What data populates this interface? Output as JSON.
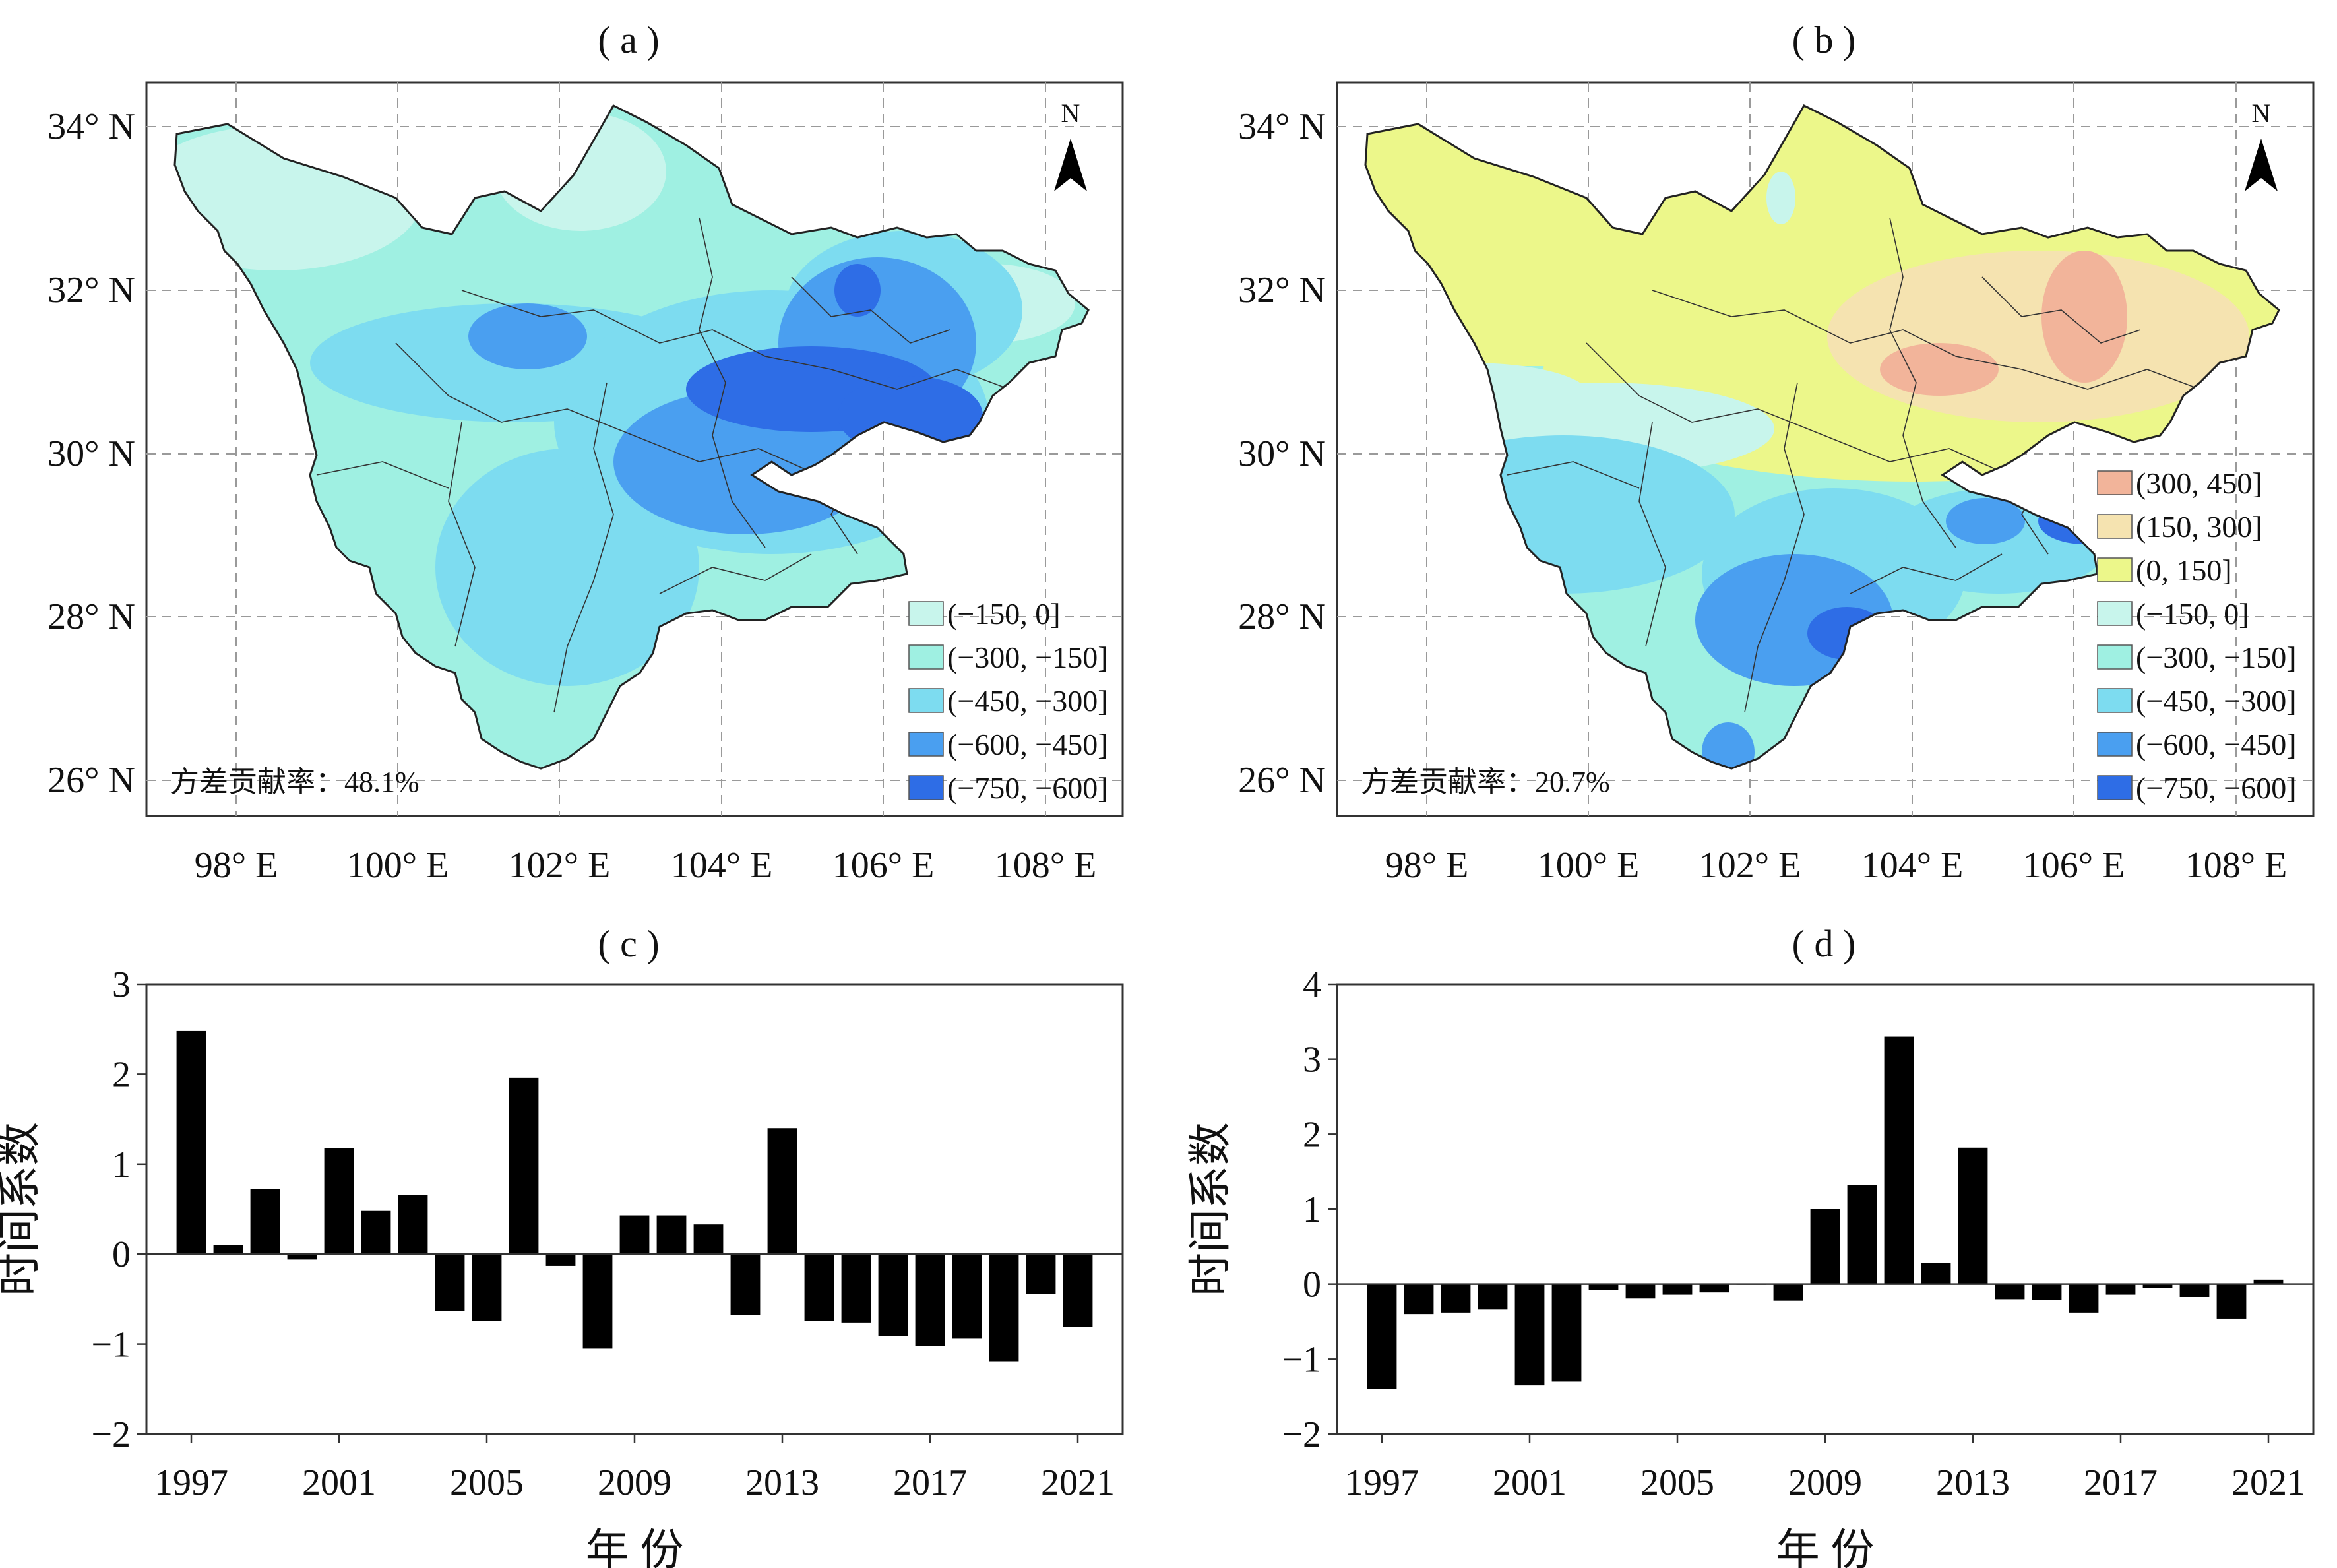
{
  "panels": {
    "a": {
      "label": "( a )",
      "variance": "方差贡献率：48.1%",
      "legend": [
        {
          "label": "(−150, 0]",
          "color": "#c8f5ec"
        },
        {
          "label": "(−300, −150]",
          "color": "#9ff0e2"
        },
        {
          "label": "(−450, −300]",
          "color": "#7ddcf0"
        },
        {
          "label": "(−600, −450]",
          "color": "#4a9ff0"
        },
        {
          "label": "(−750, −600]",
          "color": "#2e6de6"
        }
      ]
    },
    "b": {
      "label": "( b )",
      "variance": "方差贡献率：20.7%",
      "legend": [
        {
          "label": "(300, 450]",
          "color": "#f2b49a"
        },
        {
          "label": "(150, 300]",
          "color": "#f5e3b0"
        },
        {
          "label": "(0, 150]",
          "color": "#ecf78a"
        },
        {
          "label": "(−150, 0]",
          "color": "#c8f5ec"
        },
        {
          "label": "(−300, −150]",
          "color": "#9ff0e2"
        },
        {
          "label": "(−450, −300]",
          "color": "#7ddcf0"
        },
        {
          "label": "(−600, −450]",
          "color": "#4a9ff0"
        },
        {
          "label": "(−750, −600]",
          "color": "#2e6de6"
        }
      ]
    },
    "c": {
      "label": "( c )"
    },
    "d": {
      "label": "( d )"
    }
  },
  "map_axes": {
    "lat_ticks": [
      "34° N",
      "32° N",
      "30° N",
      "28° N",
      "26° N"
    ],
    "lon_ticks": [
      "98° E",
      "100° E",
      "102° E",
      "104° E",
      "106° E",
      "108° E"
    ],
    "north_label": "N"
  },
  "chart_data": [
    {
      "panel": "c",
      "type": "bar",
      "x": [
        1997,
        1998,
        1999,
        2000,
        2001,
        2002,
        2003,
        2004,
        2005,
        2006,
        2007,
        2008,
        2009,
        2010,
        2011,
        2012,
        2013,
        2014,
        2015,
        2016,
        2017,
        2018,
        2019,
        2020,
        2021
      ],
      "values": [
        2.48,
        0.1,
        0.72,
        -0.06,
        1.18,
        0.48,
        0.66,
        -0.63,
        -0.74,
        1.96,
        -0.13,
        -1.05,
        0.43,
        0.43,
        0.33,
        -0.68,
        1.4,
        -0.74,
        -0.76,
        -0.91,
        -1.02,
        -0.94,
        -1.19,
        -0.44,
        -0.81
      ],
      "x_ticks": [
        "1997",
        "2001",
        "2005",
        "2009",
        "2013",
        "2017",
        "2021"
      ],
      "y_ticks": [
        "3",
        "2",
        "1",
        "0",
        "−1",
        "−2"
      ],
      "ylim": [
        -2,
        3
      ],
      "ylabel": "时间系数",
      "xlabel": "年 份",
      "color": "#000000"
    },
    {
      "panel": "d",
      "type": "bar",
      "x": [
        1997,
        1998,
        1999,
        2000,
        2001,
        2002,
        2003,
        2004,
        2005,
        2006,
        2007,
        2008,
        2009,
        2010,
        2011,
        2012,
        2013,
        2014,
        2015,
        2016,
        2017,
        2018,
        2019,
        2020,
        2021
      ],
      "values": [
        -1.4,
        -0.4,
        -0.38,
        -0.34,
        -1.35,
        -1.3,
        -0.08,
        -0.19,
        -0.14,
        -0.11,
        0.0,
        -0.22,
        1.0,
        1.32,
        3.3,
        0.28,
        1.82,
        -0.2,
        -0.21,
        -0.38,
        -0.14,
        -0.05,
        -0.17,
        -0.46,
        0.06
      ],
      "x_ticks": [
        "1997",
        "2001",
        "2005",
        "2009",
        "2013",
        "2017",
        "2021"
      ],
      "y_ticks": [
        "4",
        "3",
        "2",
        "1",
        "0",
        "−1",
        "−2"
      ],
      "ylim": [
        -2,
        4
      ],
      "ylabel": "时间系数",
      "xlabel": "年 份",
      "color": "#000000"
    }
  ]
}
